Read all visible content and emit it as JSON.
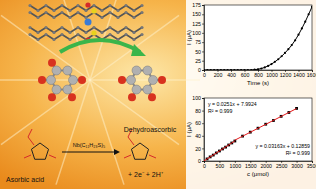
{
  "chart_data": [
    {
      "type": "line",
      "xlabel": "Time (s)",
      "ylabel": "I (μA)",
      "x": [
        0,
        50,
        100,
        150,
        200,
        250,
        300,
        350,
        400,
        450,
        500,
        550,
        600,
        650,
        700,
        750,
        800,
        850,
        900,
        950,
        1000,
        1050,
        1100,
        1150,
        1200,
        1250,
        1300,
        1350,
        1400,
        1450,
        1500,
        1550,
        1600
      ],
      "values": [
        0,
        0,
        0,
        0,
        0,
        0,
        0,
        0,
        0,
        0,
        0,
        0,
        0,
        0,
        0,
        1,
        2,
        4,
        7,
        11,
        16,
        22,
        29,
        37,
        46,
        56,
        67,
        80,
        95,
        112,
        130,
        150,
        170
      ],
      "color": "#000000",
      "marker": "circle",
      "xlim": [
        0,
        1600
      ],
      "xticks": [
        0,
        200,
        400,
        600,
        800,
        1000,
        1200,
        1400,
        1600
      ],
      "ylim": [
        0,
        175
      ],
      "yticks": [
        0,
        25,
        50,
        75,
        100,
        125,
        150,
        175
      ]
    },
    {
      "type": "scatter",
      "xlabel": "c (μmol)",
      "ylabel": "I (μA)",
      "series": [
        {
          "type": "scatter",
          "color": "#000000",
          "marker": "square",
          "x": [
            100,
            200,
            300,
            400,
            500,
            600,
            700,
            800,
            900,
            1000,
            1250,
            1500,
            1750,
            2000,
            2250,
            2500,
            2750,
            3000
          ],
          "values": [
            3.3,
            6.5,
            9.4,
            12.8,
            15.9,
            19.1,
            22.0,
            25.4,
            28.6,
            31.7,
            39.5,
            45.8,
            52.1,
            58.4,
            64.3,
            70.9,
            77.0,
            83.5
          ]
        },
        {
          "type": "line",
          "color": "#e41a1c",
          "line_style": "solid",
          "x": [
            0,
            1000
          ],
          "values": [
            0.1,
            31.8
          ]
        },
        {
          "type": "line",
          "color": "#e41a1c",
          "line_style": "solid",
          "x": [
            1000,
            3000
          ],
          "values": [
            33.1,
            83.3
          ]
        }
      ],
      "annotations": [
        "y = 0.0251x + 7.9924",
        "R² = 0.999",
        "y = 0.03163x + 0.12859",
        "R² = 0.999"
      ],
      "xlim": [
        0,
        3500
      ],
      "xticks": [
        0,
        500,
        1000,
        1500,
        2000,
        2500,
        3000,
        3500
      ],
      "ylim": [
        0,
        100
      ],
      "yticks": [
        0,
        20,
        40,
        60,
        80,
        100
      ]
    }
  ],
  "scheme": {
    "reactant": "Asorbic acid",
    "product": "Dehydroascorbic",
    "reagent": "Nb(C₁₁H₂₃S)₅",
    "byproducts": "+ 2e⁻ + 2H⁺"
  }
}
